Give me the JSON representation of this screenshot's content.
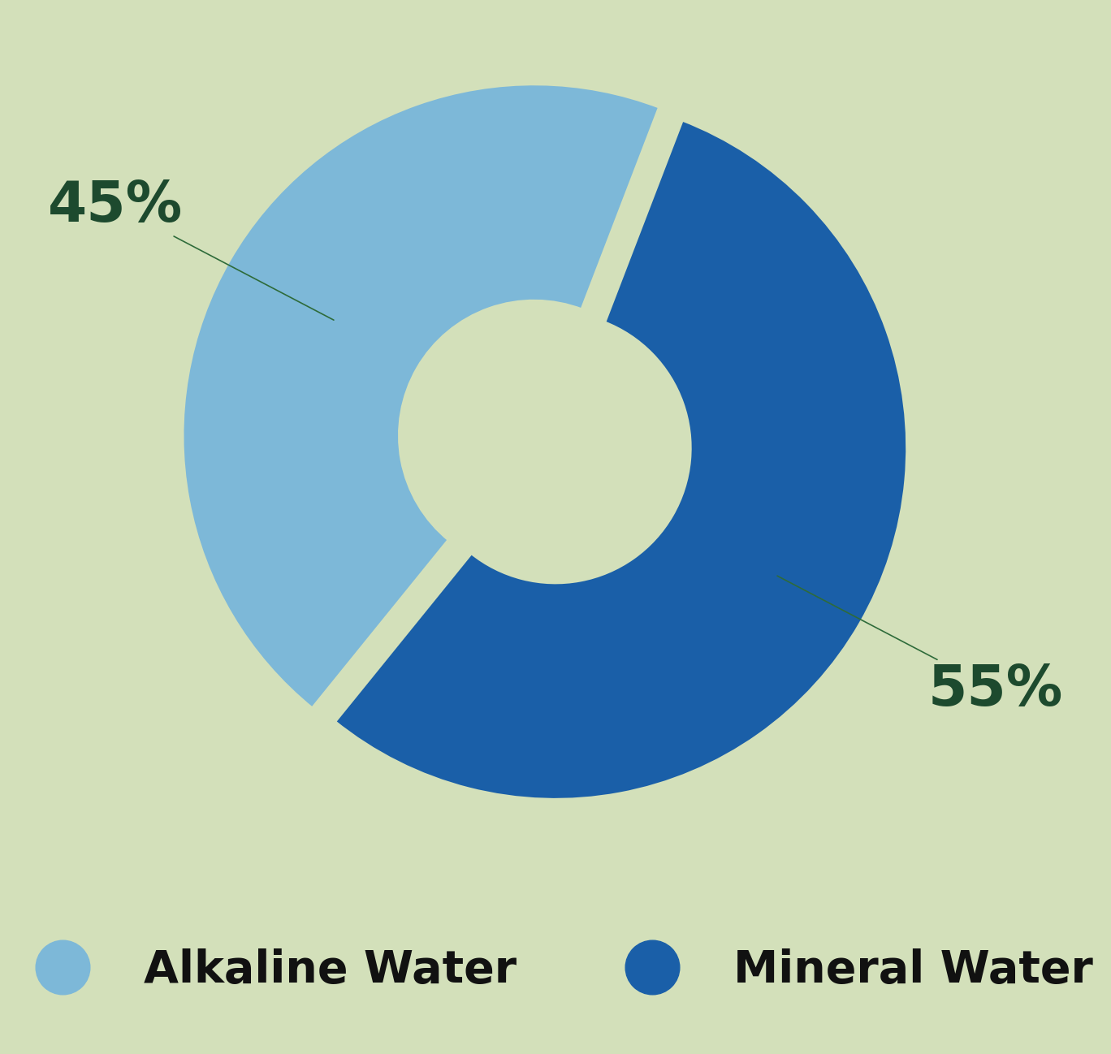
{
  "chart_data": {
    "type": "pie",
    "categories": [
      "Alkaline Water",
      "Mineral Water"
    ],
    "values": [
      45,
      55
    ],
    "value_labels": [
      "45%",
      "55%"
    ],
    "colors": [
      "#7db8d8",
      "#1a5fa8"
    ],
    "legend": "lower center"
  }
}
